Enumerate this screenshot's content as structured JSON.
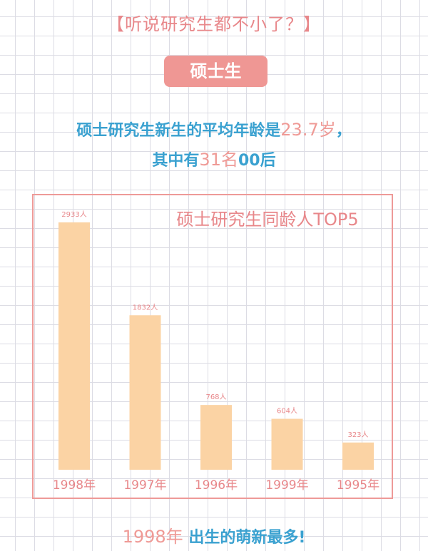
{
  "header": {
    "title": "【听说研究生都不小了？】",
    "badge": "硕士生"
  },
  "summary": {
    "line1_prefix": "硕士研究生新生的平均年龄是",
    "avg_age": "23.7岁",
    "line1_suffix": "，",
    "line2_prefix": "其中有",
    "count_00": "31名",
    "line2_suffix": "00后"
  },
  "chart_data": {
    "type": "bar",
    "title": "硕士研究生同龄人TOP5",
    "categories": [
      "1998年",
      "1997年",
      "1996年",
      "1999年",
      "1995年"
    ],
    "values": [
      2933,
      1832,
      768,
      604,
      323
    ],
    "value_labels": [
      "2933人",
      "1832人",
      "768人",
      "604人",
      "323人"
    ],
    "bar_color": "#fbd3a4",
    "label_color": "#e8878a"
  },
  "footer": {
    "highlight": "1998年",
    "text": "出生的萌新最多!"
  }
}
